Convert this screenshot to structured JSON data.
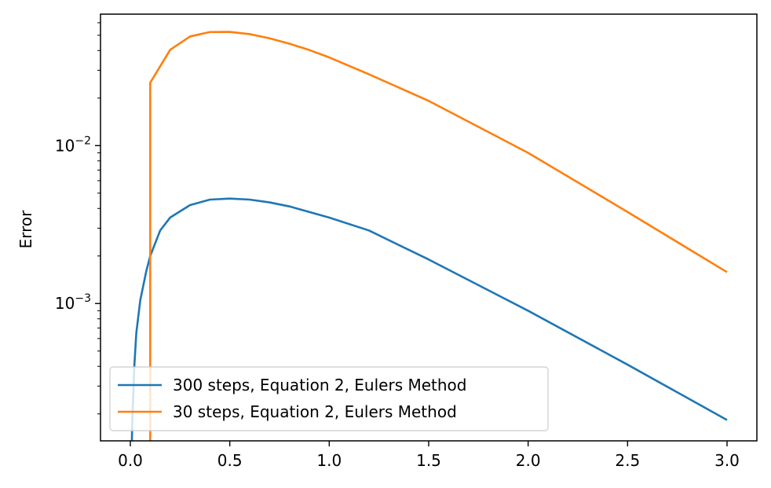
{
  "chart_data": {
    "type": "line",
    "title": "",
    "xlabel": "",
    "ylabel": "Error",
    "xlim": [
      -0.15,
      3.15
    ],
    "ylim": [
      0.000135,
      0.068
    ],
    "yscale": "log",
    "grid": false,
    "legend_position": "lower-left",
    "x_ticks": [
      {
        "value": 0.0,
        "label": "0.0"
      },
      {
        "value": 0.5,
        "label": "0.5"
      },
      {
        "value": 1.0,
        "label": "1.0"
      },
      {
        "value": 1.5,
        "label": "1.5"
      },
      {
        "value": 2.0,
        "label": "2.0"
      },
      {
        "value": 2.5,
        "label": "2.5"
      },
      {
        "value": 3.0,
        "label": "3.0"
      }
    ],
    "y_ticks": [
      {
        "value": 0.01,
        "base": "10",
        "exponent": "−2"
      },
      {
        "value": 0.001,
        "base": "10",
        "exponent": "−3"
      }
    ],
    "series": [
      {
        "name": "300 steps, Equation 2, Eulers Method",
        "color": "#1f77b4",
        "x": [
          0.0,
          0.01,
          0.02,
          0.03,
          0.05,
          0.08,
          0.1,
          0.15,
          0.2,
          0.3,
          0.4,
          0.5,
          0.6,
          0.7,
          0.8,
          1.0,
          1.2,
          1.5,
          2.0,
          2.5,
          3.0
        ],
        "y": [
          5e-05,
          0.00018,
          0.0004,
          0.00065,
          0.00105,
          0.0016,
          0.002,
          0.0029,
          0.0035,
          0.0042,
          0.00455,
          0.00462,
          0.00455,
          0.00437,
          0.00412,
          0.0035,
          0.0029,
          0.0019,
          0.0009,
          0.00041,
          0.000183
        ]
      },
      {
        "name": "30 steps, Equation 2, Eulers Method",
        "color": "#ff7f0e",
        "x": [
          0.1,
          0.1,
          0.2,
          0.3,
          0.4,
          0.5,
          0.6,
          0.7,
          0.8,
          0.9,
          1.0,
          1.2,
          1.5,
          2.0,
          2.5,
          3.0
        ],
        "y": [
          5e-05,
          0.025,
          0.0404,
          0.0491,
          0.0524,
          0.0525,
          0.0508,
          0.0478,
          0.0442,
          0.0403,
          0.0362,
          0.0283,
          0.0192,
          0.009,
          0.0038,
          0.00158
        ]
      }
    ]
  }
}
